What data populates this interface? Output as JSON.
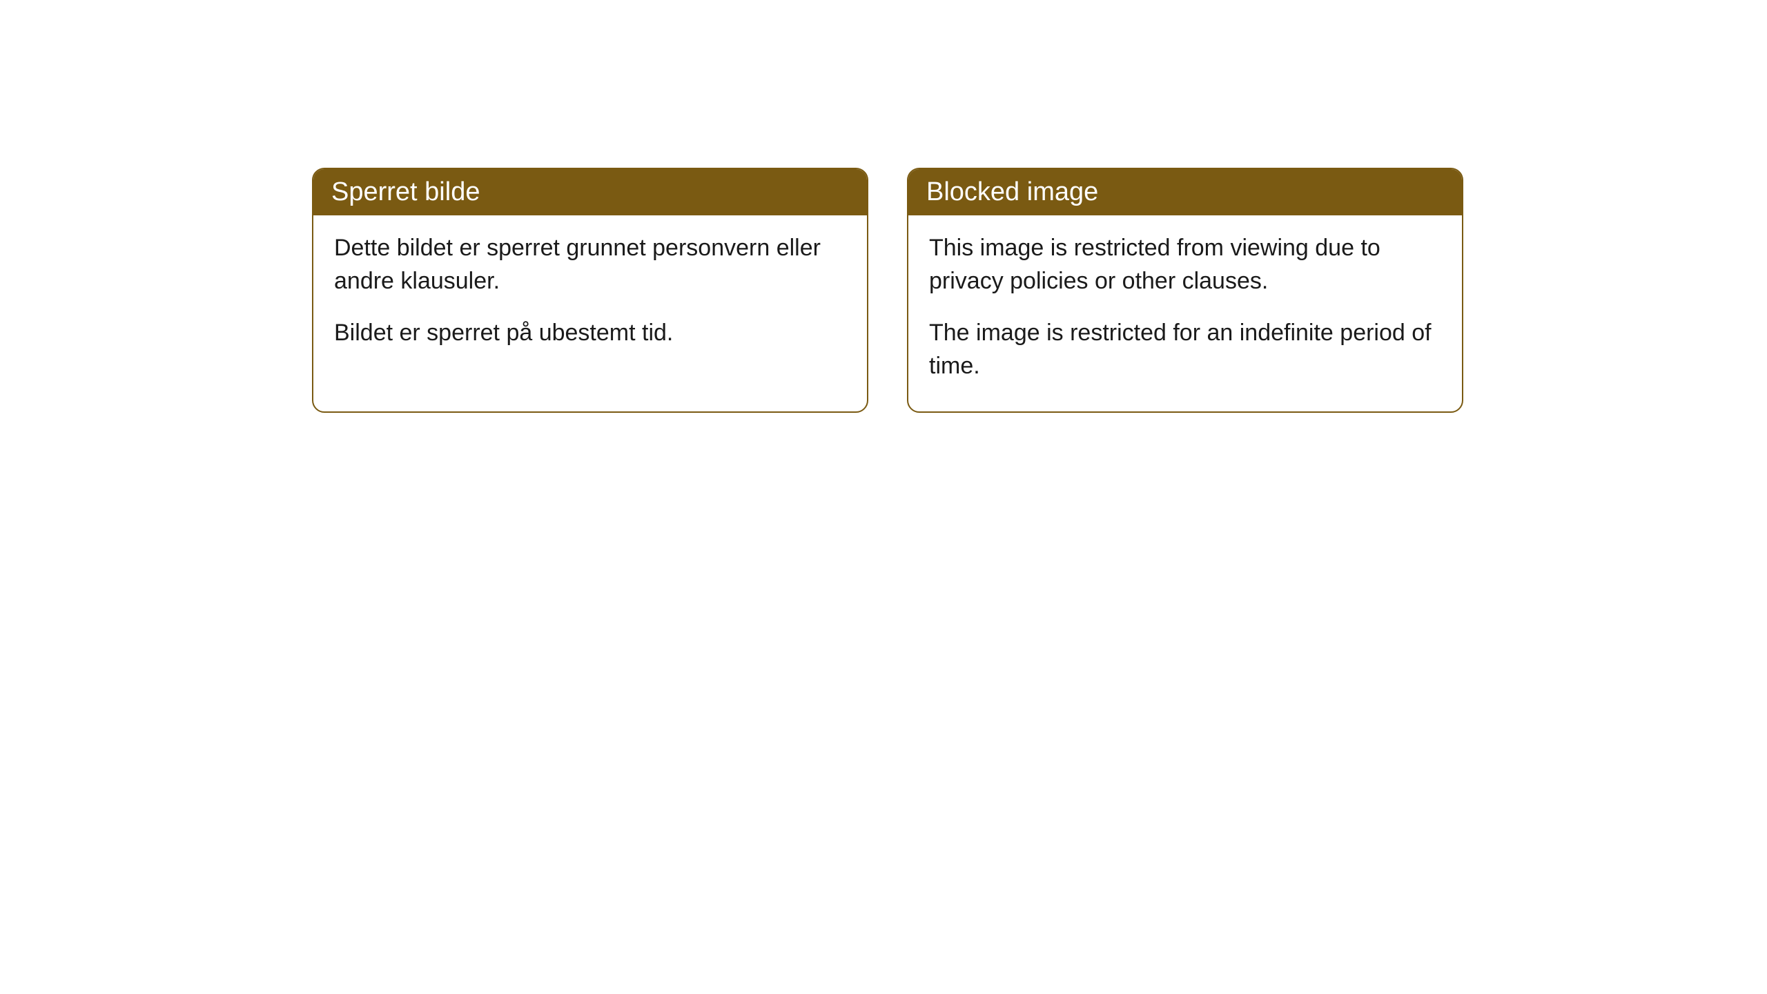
{
  "cards": [
    {
      "title": "Sperret bilde",
      "paragraph1": "Dette bildet er sperret grunnet personvern eller andre klausuler.",
      "paragraph2": "Bildet er sperret på ubestemt tid."
    },
    {
      "title": "Blocked image",
      "paragraph1": "This image is restricted from viewing due to privacy policies or other clauses.",
      "paragraph2": "The image is restricted for an indefinite period of time."
    }
  ],
  "colors": {
    "header_bg": "#7a5a12",
    "header_text": "#ffffff",
    "body_text": "#1a1a1a",
    "card_border": "#7a5a12",
    "page_bg": "#ffffff"
  }
}
